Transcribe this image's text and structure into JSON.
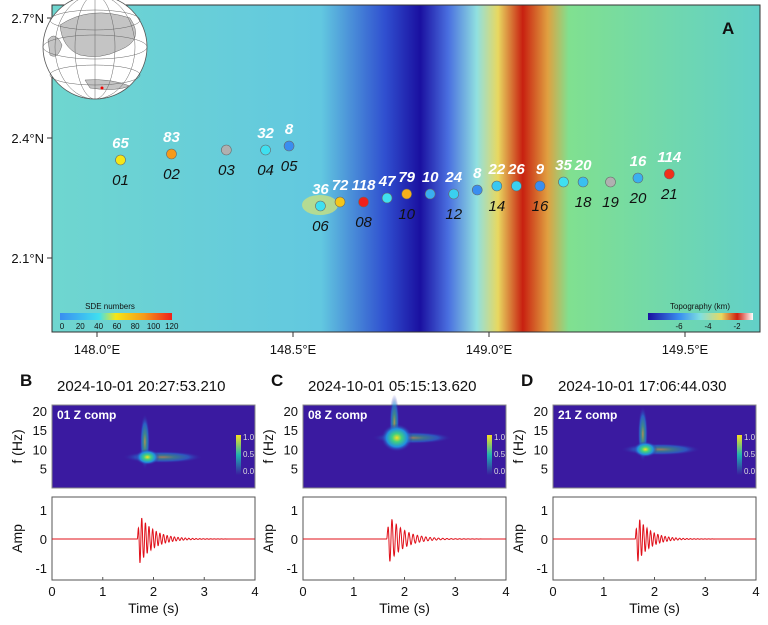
{
  "panel_a": {
    "label": "A",
    "lat_ticks": [
      "2.7°N",
      "2.4°N",
      "2.1°N"
    ],
    "lon_ticks": [
      "148.0°E",
      "148.5°E",
      "149.0°E",
      "149.5°E"
    ],
    "sde_colorbar": {
      "title": "SDE numbers",
      "ticks": [
        "0",
        "20",
        "40",
        "60",
        "80",
        "100",
        "120"
      ]
    },
    "topo_colorbar": {
      "title": "Topography (km)",
      "ticks": [
        "-6",
        "-4",
        "-2"
      ]
    },
    "stations": [
      {
        "id": "01",
        "sde": "65",
        "color": "#f5e617",
        "lon": 148.06,
        "lat": 2.345,
        "show_id": true
      },
      {
        "id": "02",
        "sde": "83",
        "color": "#f59a1a",
        "lon": 148.19,
        "lat": 2.36,
        "show_id": true
      },
      {
        "id": "03",
        "sde": "",
        "color": "#b0b0b0",
        "lon": 148.33,
        "lat": 2.37,
        "show_id": true
      },
      {
        "id": "04",
        "sde": "32",
        "color": "#3fe0f0",
        "lon": 148.43,
        "lat": 2.37,
        "show_id": true
      },
      {
        "id": "05",
        "sde": "8",
        "color": "#3a8ef0",
        "lon": 148.49,
        "lat": 2.38,
        "show_id": true
      },
      {
        "id": "06",
        "sde": "36",
        "color": "#3fe0f0",
        "lon": 148.57,
        "lat": 2.23,
        "show_id": true
      },
      {
        "id": "07",
        "sde": "72",
        "color": "#f5c61a",
        "lon": 148.62,
        "lat": 2.24,
        "show_id": false
      },
      {
        "id": "08",
        "sde": "118",
        "color": "#f0201a",
        "lon": 148.68,
        "lat": 2.24,
        "show_id": true
      },
      {
        "id": "09",
        "sde": "47",
        "color": "#3fe0f0",
        "lon": 148.74,
        "lat": 2.25,
        "show_id": false
      },
      {
        "id": "10",
        "sde": "79",
        "color": "#f5b01a",
        "lon": 148.79,
        "lat": 2.26,
        "show_id": true
      },
      {
        "id": "11",
        "sde": "10",
        "color": "#3aaef0",
        "lon": 148.85,
        "lat": 2.26,
        "show_id": false
      },
      {
        "id": "12",
        "sde": "24",
        "color": "#3ad0f0",
        "lon": 148.91,
        "lat": 2.26,
        "show_id": true
      },
      {
        "id": "13",
        "sde": "8",
        "color": "#3a8ef0",
        "lon": 148.97,
        "lat": 2.27,
        "show_id": false
      },
      {
        "id": "14",
        "sde": "22",
        "color": "#3ac8f0",
        "lon": 149.02,
        "lat": 2.28,
        "show_id": true
      },
      {
        "id": "15",
        "sde": "26",
        "color": "#3ad0f0",
        "lon": 149.07,
        "lat": 2.28,
        "show_id": false
      },
      {
        "id": "16",
        "sde": "9",
        "color": "#3a8ef0",
        "lon": 149.13,
        "lat": 2.28,
        "show_id": true
      },
      {
        "id": "17",
        "sde": "35",
        "color": "#3fe0f0",
        "lon": 149.19,
        "lat": 2.29,
        "show_id": false
      },
      {
        "id": "18",
        "sde": "20",
        "color": "#3ac0f0",
        "lon": 149.24,
        "lat": 2.29,
        "show_id": true
      },
      {
        "id": "19",
        "sde": "",
        "color": "#b0b0b0",
        "lon": 149.31,
        "lat": 2.29,
        "show_id": true
      },
      {
        "id": "20",
        "sde": "16",
        "color": "#3ab0f0",
        "lon": 149.38,
        "lat": 2.3,
        "show_id": true
      },
      {
        "id": "21",
        "sde": "114",
        "color": "#f0301a",
        "lon": 149.46,
        "lat": 2.31,
        "show_id": true
      }
    ]
  },
  "events": [
    {
      "label": "B",
      "datetime": "2024-10-01 20:27:53.210",
      "comp_label": "01 Z comp",
      "peak_freq_hz": 8,
      "onset_s": 1.68,
      "peak_amp": 1.0,
      "osc_hz": 14,
      "decay_s": 0.28
    },
    {
      "label": "C",
      "datetime": "2024-10-01 05:15:13.620",
      "comp_label": "08 Z comp",
      "peak_freq_hz": 13,
      "onset_s": 1.65,
      "peak_amp": 0.95,
      "osc_hz": 12,
      "decay_s": 0.3
    },
    {
      "label": "D",
      "datetime": "2024-10-01 17:06:44.030",
      "comp_label": "21 Z comp",
      "peak_freq_hz": 10,
      "onset_s": 1.62,
      "peak_amp": 0.95,
      "osc_hz": 14,
      "decay_s": 0.25
    }
  ],
  "spectrogram_axes": {
    "ylabel": "f (Hz)",
    "yticks": [
      "5",
      "10",
      "15",
      "20"
    ],
    "colorbar_ticks": [
      "1.0",
      "0.5",
      "0.0"
    ]
  },
  "waveform_axes": {
    "ylabel": "Amp",
    "yticks": [
      "1",
      "0",
      "-1"
    ],
    "xlabel": "Time (s)",
    "xticks": [
      "0",
      "1",
      "2",
      "3",
      "4"
    ],
    "line_color": "#e0101a"
  }
}
